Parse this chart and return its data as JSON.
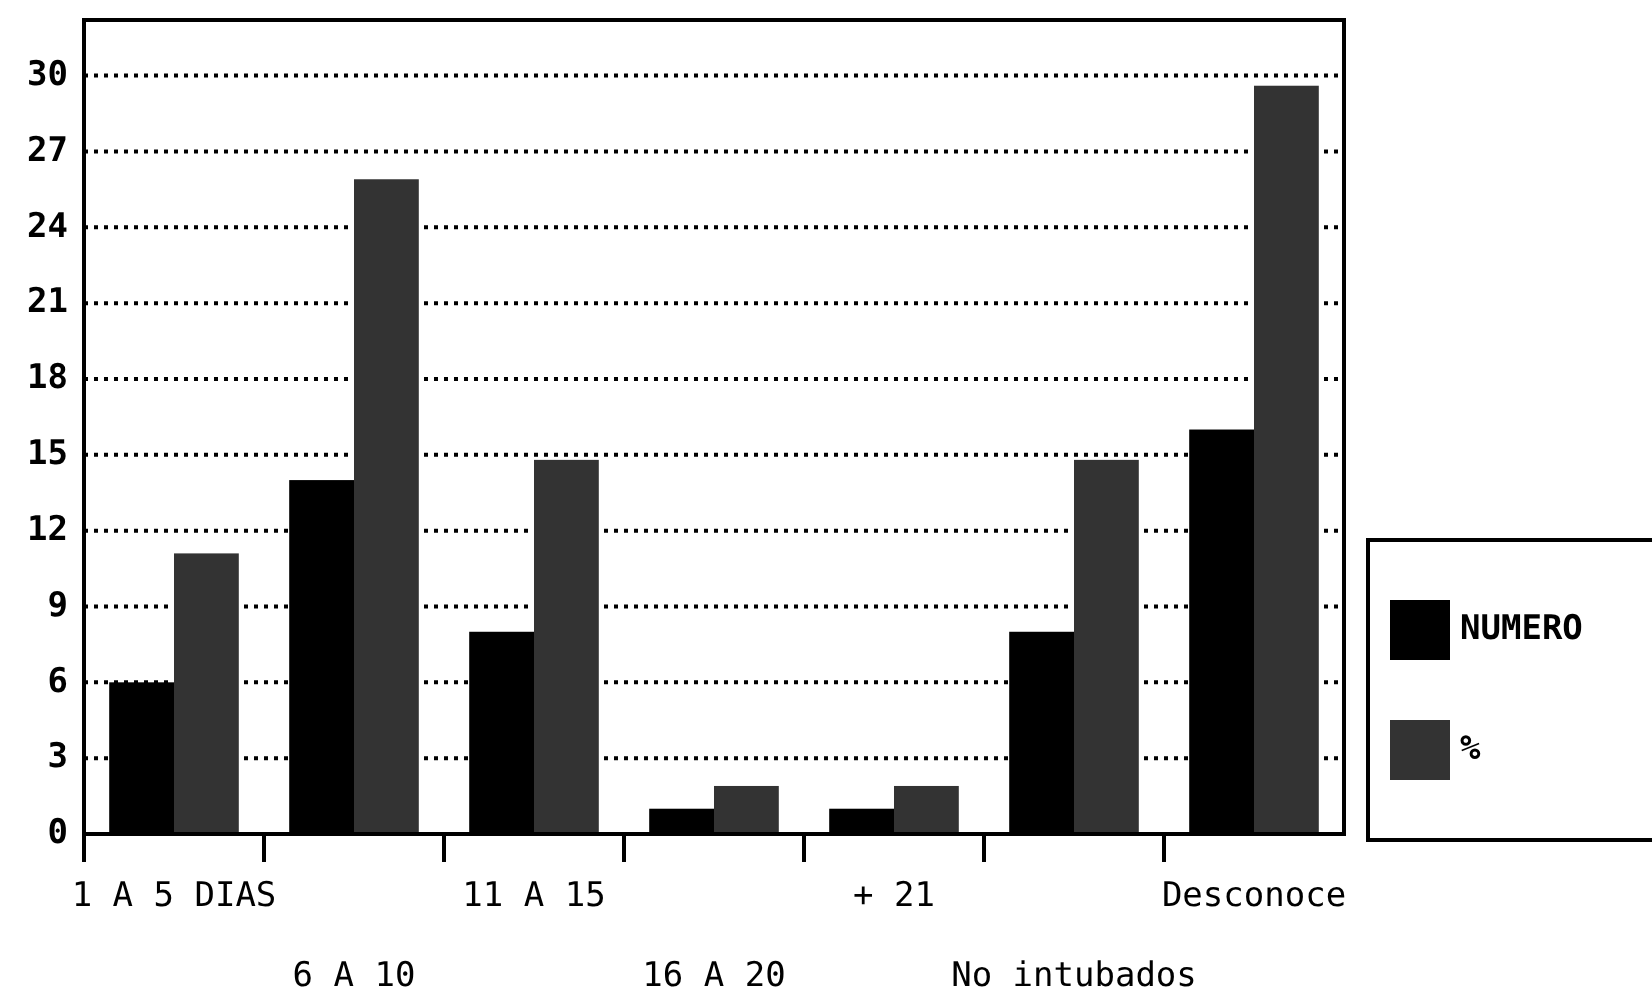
{
  "chart_data": {
    "type": "bar",
    "categories": [
      "1 A 5 DIAS",
      "6 A 10",
      "11 A 15",
      "16 A 20",
      "+ 21",
      "No intubados",
      "Desconoce"
    ],
    "series": [
      {
        "name": "NUMERO",
        "color": "#000000",
        "values": [
          6,
          14,
          8,
          1,
          1,
          8,
          16
        ]
      },
      {
        "name": "%",
        "color": "#333333",
        "values": [
          11.1,
          25.9,
          14.8,
          1.9,
          1.9,
          14.8,
          29.6
        ]
      }
    ],
    "ylim": [
      0,
      32.2
    ],
    "yticks": [
      0,
      3,
      6,
      9,
      12,
      15,
      18,
      21,
      24,
      27,
      30
    ],
    "grid": "y",
    "legend": "right"
  }
}
